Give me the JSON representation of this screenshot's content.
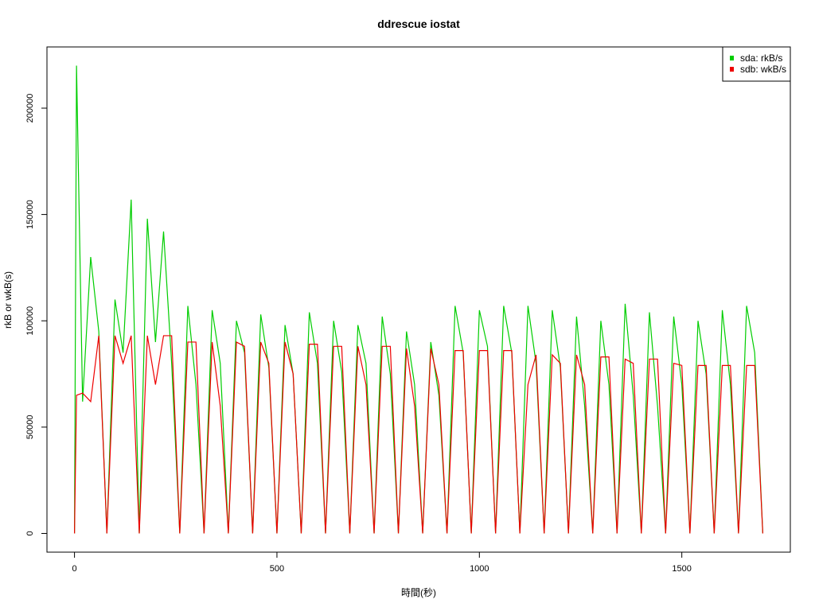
{
  "chart_data": {
    "type": "line",
    "title": "ddrescue iostat",
    "xlabel": "時間(秒)",
    "ylabel": "rkB or wkB(s)",
    "x": [
      0,
      5,
      20,
      40,
      60,
      80,
      100,
      120,
      140,
      160,
      180,
      200,
      220,
      240,
      260,
      280,
      300,
      320,
      340,
      360,
      380,
      400,
      420,
      440,
      460,
      480,
      500,
      520,
      540,
      560,
      580,
      600,
      620,
      640,
      660,
      680,
      700,
      720,
      740,
      760,
      780,
      800,
      820,
      840,
      860,
      880,
      900,
      920,
      940,
      960,
      980,
      1000,
      1020,
      1040,
      1060,
      1080,
      1100,
      1120,
      1140,
      1160,
      1180,
      1200,
      1220,
      1240,
      1260,
      1280,
      1300,
      1320,
      1340,
      1360,
      1380,
      1400,
      1420,
      1440,
      1460,
      1480,
      1500,
      1520,
      1540,
      1560,
      1580,
      1600,
      1620,
      1640,
      1660,
      1680,
      1700
    ],
    "series": [
      {
        "name": "sda: rkB/s",
        "color": "#00cd00",
        "values": [
          0,
          220000,
          62000,
          130000,
          95000,
          0,
          110000,
          85000,
          157000,
          0,
          148000,
          90000,
          142000,
          80000,
          0,
          107000,
          70000,
          0,
          105000,
          80000,
          0,
          100000,
          85000,
          0,
          103000,
          78000,
          0,
          98000,
          75000,
          0,
          104000,
          80000,
          0,
          100000,
          76000,
          0,
          98000,
          80000,
          0,
          102000,
          75000,
          0,
          95000,
          70000,
          0,
          90000,
          65000,
          0,
          107000,
          85000,
          0,
          105000,
          88000,
          0,
          107000,
          85000,
          0,
          107000,
          80000,
          0,
          105000,
          78000,
          0,
          102000,
          60000,
          0,
          100000,
          70000,
          0,
          108000,
          65000,
          0,
          104000,
          60000,
          0,
          102000,
          70000,
          0,
          100000,
          75000,
          0,
          105000,
          70000,
          0,
          107000,
          85000,
          0
        ]
      },
      {
        "name": "sdb: wkB/s",
        "color": "#ee0000",
        "values": [
          0,
          65000,
          66000,
          62000,
          93000,
          0,
          93000,
          80000,
          93000,
          0,
          93000,
          70000,
          93000,
          93000,
          0,
          90000,
          90000,
          0,
          90000,
          60000,
          0,
          90000,
          88000,
          0,
          90000,
          80000,
          0,
          90000,
          75000,
          0,
          89000,
          89000,
          0,
          88000,
          88000,
          0,
          88000,
          70000,
          0,
          88000,
          88000,
          0,
          87000,
          60000,
          0,
          87000,
          70000,
          0,
          86000,
          86000,
          0,
          86000,
          86000,
          0,
          86000,
          86000,
          0,
          70000,
          84000,
          0,
          84000,
          80000,
          0,
          84000,
          70000,
          0,
          83000,
          83000,
          0,
          82000,
          80000,
          0,
          82000,
          82000,
          0,
          80000,
          79000,
          0,
          79000,
          79000,
          0,
          79000,
          79000,
          0,
          79000,
          79000,
          0
        ]
      }
    ],
    "xlim": [
      -68,
      1768
    ],
    "ylim": [
      -8800,
      228800
    ],
    "xticks": [
      0,
      500,
      1000,
      1500
    ],
    "yticks": [
      0,
      50000,
      100000,
      150000,
      200000
    ],
    "legend": "top-right"
  }
}
